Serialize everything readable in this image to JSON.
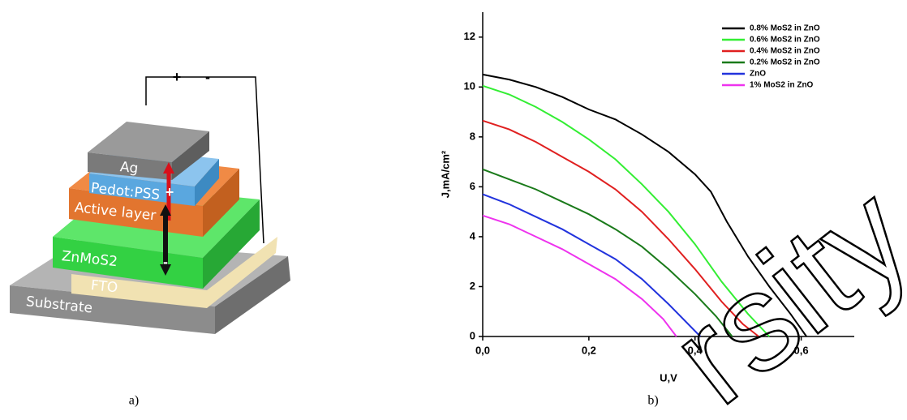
{
  "diagram": {
    "polarity": [
      "+",
      "-"
    ],
    "layers": [
      "Ag",
      "Pedot:PSS",
      "Active layer",
      "ZnMoS2",
      "FTO",
      "Substrate"
    ],
    "charge_signs": [
      "+",
      "-"
    ]
  },
  "captions": [
    "a)",
    "b)"
  ],
  "watermark": "rsity",
  "chart_data": {
    "type": "line",
    "x_label": "U,V",
    "y_label": "J,mA/cm²",
    "xlim": [
      0,
      0.7
    ],
    "ylim": [
      0,
      13
    ],
    "xticks": [
      {
        "value": 0,
        "label": "0,0"
      },
      {
        "value": 0.2,
        "label": "0,2"
      },
      {
        "value": 0.4,
        "label": "0,4"
      },
      {
        "value": 0.6,
        "label": "0,6"
      }
    ],
    "yticks": [
      0,
      2,
      4,
      6,
      8,
      10,
      12
    ],
    "legend": "upper right",
    "series": [
      {
        "name": "0.8% MoS2 in ZnO",
        "color": "#000000",
        "x": [
          0,
          0.05,
          0.1,
          0.15,
          0.2,
          0.25,
          0.3,
          0.35,
          0.4,
          0.43,
          0.46,
          0.5,
          0.54,
          0.58,
          0.61
        ],
        "values": [
          10.5,
          10.3,
          10,
          9.6,
          9.1,
          8.7,
          8.1,
          7.4,
          6.5,
          5.8,
          4.6,
          3.2,
          2,
          0.9,
          0
        ]
      },
      {
        "name": "0.6% MoS2 in ZnO",
        "color": "#33ee33",
        "x": [
          0,
          0.05,
          0.1,
          0.15,
          0.2,
          0.25,
          0.3,
          0.35,
          0.4,
          0.45,
          0.5,
          0.54
        ],
        "values": [
          10.05,
          9.7,
          9.2,
          8.6,
          7.9,
          7.1,
          6.1,
          5,
          3.7,
          2.2,
          0.9,
          0
        ]
      },
      {
        "name": "0.4% MoS2 in ZnO",
        "color": "#e02020",
        "x": [
          0,
          0.05,
          0.1,
          0.15,
          0.2,
          0.25,
          0.3,
          0.35,
          0.4,
          0.45,
          0.49,
          0.52
        ],
        "values": [
          8.65,
          8.3,
          7.8,
          7.2,
          6.6,
          5.9,
          5,
          3.9,
          2.7,
          1.4,
          0.5,
          0
        ]
      },
      {
        "name": "0.2% MoS2 in ZnO",
        "color": "#1a7a1a",
        "x": [
          0,
          0.05,
          0.1,
          0.15,
          0.2,
          0.25,
          0.3,
          0.35,
          0.4,
          0.44,
          0.47
        ],
        "values": [
          6.7,
          6.3,
          5.9,
          5.4,
          4.9,
          4.3,
          3.6,
          2.7,
          1.7,
          0.8,
          0
        ]
      },
      {
        "name": "ZnO",
        "color": "#2233dd",
        "x": [
          0,
          0.05,
          0.1,
          0.15,
          0.2,
          0.25,
          0.3,
          0.35,
          0.41
        ],
        "values": [
          5.7,
          5.3,
          4.8,
          4.3,
          3.7,
          3.1,
          2.3,
          1.3,
          0
        ]
      },
      {
        "name": "1% MoS2 in ZnO",
        "color": "#ee33ee",
        "x": [
          0,
          0.05,
          0.1,
          0.15,
          0.2,
          0.25,
          0.3,
          0.34,
          0.365
        ],
        "values": [
          4.85,
          4.5,
          4,
          3.5,
          2.9,
          2.3,
          1.5,
          0.7,
          0
        ]
      }
    ]
  }
}
